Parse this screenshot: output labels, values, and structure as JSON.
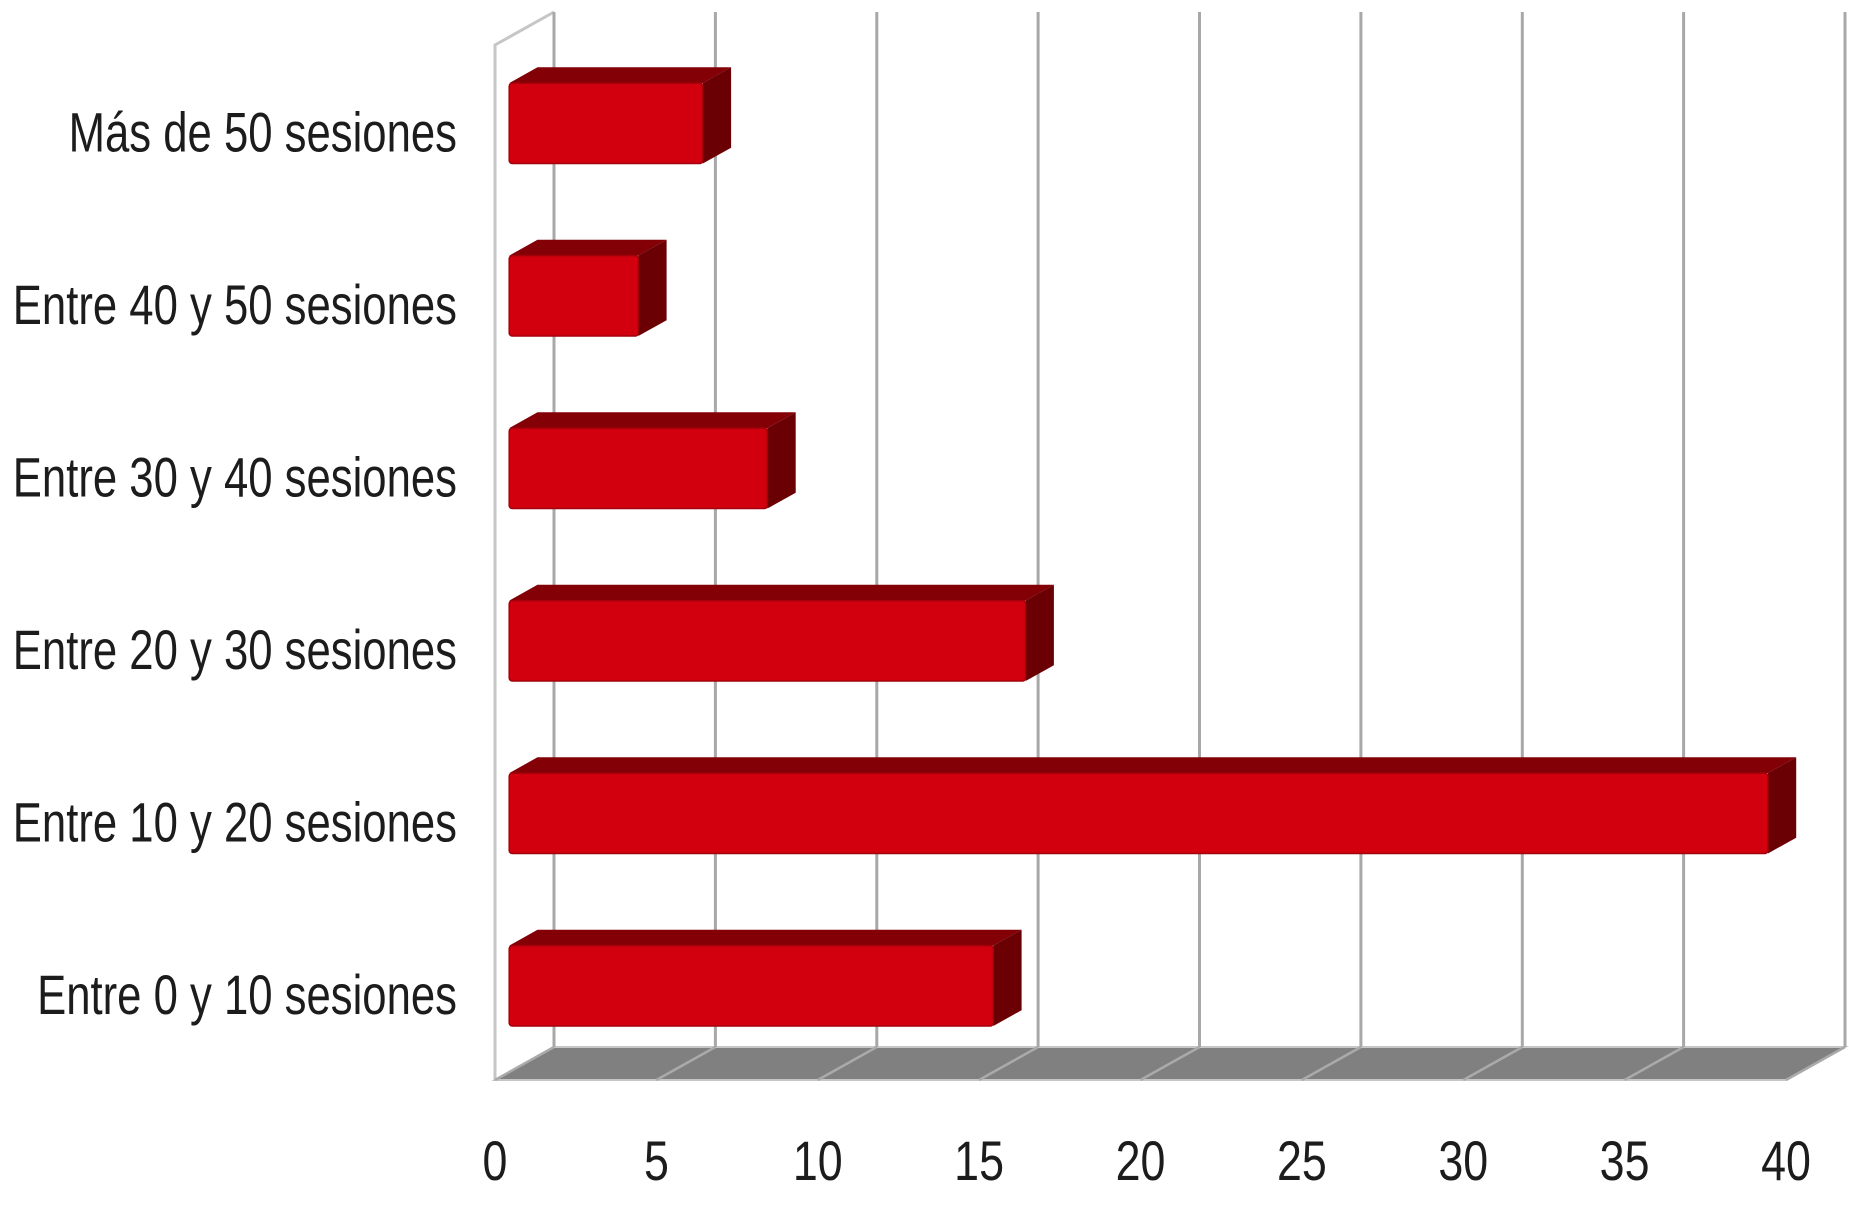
{
  "chart_data": {
    "type": "bar",
    "orientation": "horizontal",
    "three_d": true,
    "categories": [
      "Entre 0 y 10 sesiones",
      "Entre 10 y 20 sesiones",
      "Entre 20 y 30 sesiones",
      "Entre 30 y 40 sesiones",
      "Entre 40 y 50 sesiones",
      "Más de 50 sesiones"
    ],
    "values": [
      15,
      39,
      16,
      8,
      4,
      6
    ],
    "xlim": [
      0,
      40
    ],
    "xticks": [
      "0",
      "5",
      "10",
      "15",
      "20",
      "25",
      "30",
      "35",
      "40"
    ],
    "grid": true,
    "legend": "none",
    "colors": {
      "bar_front": "#d2000f",
      "bar_top": "#820006",
      "bar_side": "#6a0004",
      "floor": "#808080",
      "floor_line": "#aaaaaa",
      "gridline": "#a8a8a8",
      "wall_edge": "#c6c6c6"
    }
  }
}
